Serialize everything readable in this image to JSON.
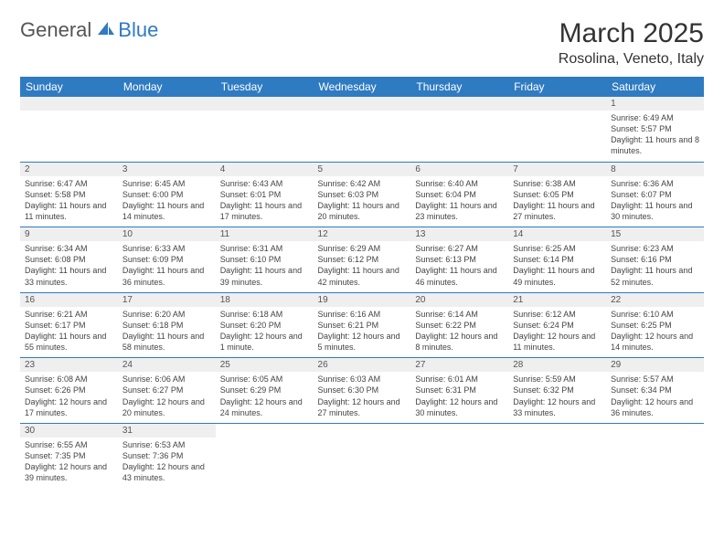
{
  "logo": {
    "text1": "General",
    "text2": "Blue"
  },
  "title": "March 2025",
  "subtitle": "Rosolina, Veneto, Italy",
  "colors": {
    "header_bg": "#2f7bc2",
    "header_text": "#ffffff",
    "daynum_bg": "#efefef",
    "border": "#2f7bc2",
    "body_text": "#444444"
  },
  "weekdays": [
    "Sunday",
    "Monday",
    "Tuesday",
    "Wednesday",
    "Thursday",
    "Friday",
    "Saturday"
  ],
  "weeks": [
    [
      null,
      null,
      null,
      null,
      null,
      null,
      {
        "n": "1",
        "sr": "Sunrise: 6:49 AM",
        "ss": "Sunset: 5:57 PM",
        "dl": "Daylight: 11 hours and 8 minutes."
      }
    ],
    [
      {
        "n": "2",
        "sr": "Sunrise: 6:47 AM",
        "ss": "Sunset: 5:58 PM",
        "dl": "Daylight: 11 hours and 11 minutes."
      },
      {
        "n": "3",
        "sr": "Sunrise: 6:45 AM",
        "ss": "Sunset: 6:00 PM",
        "dl": "Daylight: 11 hours and 14 minutes."
      },
      {
        "n": "4",
        "sr": "Sunrise: 6:43 AM",
        "ss": "Sunset: 6:01 PM",
        "dl": "Daylight: 11 hours and 17 minutes."
      },
      {
        "n": "5",
        "sr": "Sunrise: 6:42 AM",
        "ss": "Sunset: 6:03 PM",
        "dl": "Daylight: 11 hours and 20 minutes."
      },
      {
        "n": "6",
        "sr": "Sunrise: 6:40 AM",
        "ss": "Sunset: 6:04 PM",
        "dl": "Daylight: 11 hours and 23 minutes."
      },
      {
        "n": "7",
        "sr": "Sunrise: 6:38 AM",
        "ss": "Sunset: 6:05 PM",
        "dl": "Daylight: 11 hours and 27 minutes."
      },
      {
        "n": "8",
        "sr": "Sunrise: 6:36 AM",
        "ss": "Sunset: 6:07 PM",
        "dl": "Daylight: 11 hours and 30 minutes."
      }
    ],
    [
      {
        "n": "9",
        "sr": "Sunrise: 6:34 AM",
        "ss": "Sunset: 6:08 PM",
        "dl": "Daylight: 11 hours and 33 minutes."
      },
      {
        "n": "10",
        "sr": "Sunrise: 6:33 AM",
        "ss": "Sunset: 6:09 PM",
        "dl": "Daylight: 11 hours and 36 minutes."
      },
      {
        "n": "11",
        "sr": "Sunrise: 6:31 AM",
        "ss": "Sunset: 6:10 PM",
        "dl": "Daylight: 11 hours and 39 minutes."
      },
      {
        "n": "12",
        "sr": "Sunrise: 6:29 AM",
        "ss": "Sunset: 6:12 PM",
        "dl": "Daylight: 11 hours and 42 minutes."
      },
      {
        "n": "13",
        "sr": "Sunrise: 6:27 AM",
        "ss": "Sunset: 6:13 PM",
        "dl": "Daylight: 11 hours and 46 minutes."
      },
      {
        "n": "14",
        "sr": "Sunrise: 6:25 AM",
        "ss": "Sunset: 6:14 PM",
        "dl": "Daylight: 11 hours and 49 minutes."
      },
      {
        "n": "15",
        "sr": "Sunrise: 6:23 AM",
        "ss": "Sunset: 6:16 PM",
        "dl": "Daylight: 11 hours and 52 minutes."
      }
    ],
    [
      {
        "n": "16",
        "sr": "Sunrise: 6:21 AM",
        "ss": "Sunset: 6:17 PM",
        "dl": "Daylight: 11 hours and 55 minutes."
      },
      {
        "n": "17",
        "sr": "Sunrise: 6:20 AM",
        "ss": "Sunset: 6:18 PM",
        "dl": "Daylight: 11 hours and 58 minutes."
      },
      {
        "n": "18",
        "sr": "Sunrise: 6:18 AM",
        "ss": "Sunset: 6:20 PM",
        "dl": "Daylight: 12 hours and 1 minute."
      },
      {
        "n": "19",
        "sr": "Sunrise: 6:16 AM",
        "ss": "Sunset: 6:21 PM",
        "dl": "Daylight: 12 hours and 5 minutes."
      },
      {
        "n": "20",
        "sr": "Sunrise: 6:14 AM",
        "ss": "Sunset: 6:22 PM",
        "dl": "Daylight: 12 hours and 8 minutes."
      },
      {
        "n": "21",
        "sr": "Sunrise: 6:12 AM",
        "ss": "Sunset: 6:24 PM",
        "dl": "Daylight: 12 hours and 11 minutes."
      },
      {
        "n": "22",
        "sr": "Sunrise: 6:10 AM",
        "ss": "Sunset: 6:25 PM",
        "dl": "Daylight: 12 hours and 14 minutes."
      }
    ],
    [
      {
        "n": "23",
        "sr": "Sunrise: 6:08 AM",
        "ss": "Sunset: 6:26 PM",
        "dl": "Daylight: 12 hours and 17 minutes."
      },
      {
        "n": "24",
        "sr": "Sunrise: 6:06 AM",
        "ss": "Sunset: 6:27 PM",
        "dl": "Daylight: 12 hours and 20 minutes."
      },
      {
        "n": "25",
        "sr": "Sunrise: 6:05 AM",
        "ss": "Sunset: 6:29 PM",
        "dl": "Daylight: 12 hours and 24 minutes."
      },
      {
        "n": "26",
        "sr": "Sunrise: 6:03 AM",
        "ss": "Sunset: 6:30 PM",
        "dl": "Daylight: 12 hours and 27 minutes."
      },
      {
        "n": "27",
        "sr": "Sunrise: 6:01 AM",
        "ss": "Sunset: 6:31 PM",
        "dl": "Daylight: 12 hours and 30 minutes."
      },
      {
        "n": "28",
        "sr": "Sunrise: 5:59 AM",
        "ss": "Sunset: 6:32 PM",
        "dl": "Daylight: 12 hours and 33 minutes."
      },
      {
        "n": "29",
        "sr": "Sunrise: 5:57 AM",
        "ss": "Sunset: 6:34 PM",
        "dl": "Daylight: 12 hours and 36 minutes."
      }
    ],
    [
      {
        "n": "30",
        "sr": "Sunrise: 6:55 AM",
        "ss": "Sunset: 7:35 PM",
        "dl": "Daylight: 12 hours and 39 minutes."
      },
      {
        "n": "31",
        "sr": "Sunrise: 6:53 AM",
        "ss": "Sunset: 7:36 PM",
        "dl": "Daylight: 12 hours and 43 minutes."
      },
      null,
      null,
      null,
      null,
      null
    ]
  ]
}
